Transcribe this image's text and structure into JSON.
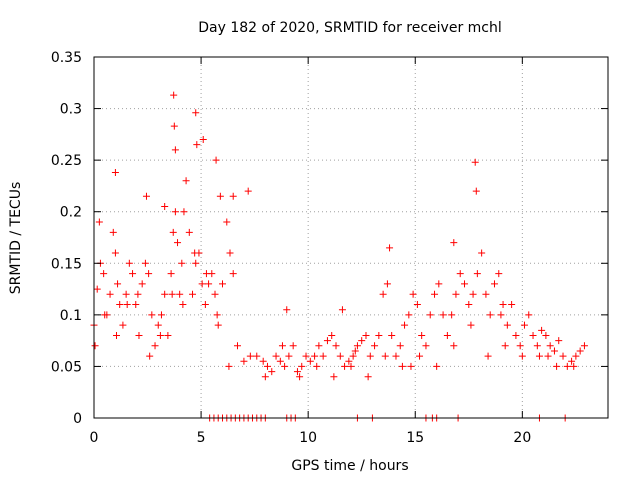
{
  "chart_data": {
    "type": "scatter",
    "title": "Day 182 of 2020, SRMTID for receiver mchl",
    "xlabel": "GPS time / hours",
    "ylabel": "SRMTID / TECUs",
    "xlim": [
      0,
      24
    ],
    "ylim": [
      0,
      0.35
    ],
    "xticks": [
      0,
      5,
      10,
      15,
      20
    ],
    "xtick_labels": [
      "0",
      "5",
      "10",
      "15",
      "20"
    ],
    "yticks": [
      0,
      0.05,
      0.1,
      0.15,
      0.2,
      0.25,
      0.3,
      0.35
    ],
    "ytick_labels": [
      "0",
      "0.05",
      "0.1",
      "0.15",
      "0.2",
      "0.25",
      "0.3",
      "0.35"
    ],
    "grid": true,
    "marker": "+",
    "color": "#ff0000",
    "series": [
      {
        "name": "SRMTID",
        "x": [
          0.0,
          0.15,
          0.3,
          0.45,
          0.6,
          0.75,
          0.9,
          1.0,
          1.1,
          1.2,
          1.35,
          1.5,
          1.65,
          1.8,
          1.95,
          2.1,
          2.25,
          2.4,
          2.55,
          2.7,
          2.85,
          3.0,
          3.15,
          3.3,
          3.45,
          3.6,
          3.7,
          3.8,
          3.9,
          4.0,
          4.1,
          4.2,
          4.3,
          4.45,
          4.6,
          4.75,
          4.9,
          5.05,
          5.2,
          5.35,
          5.5,
          5.65,
          5.8,
          6.0,
          6.2,
          6.35,
          6.5,
          6.7,
          7.0,
          7.3,
          7.6,
          7.9,
          8.1,
          8.3,
          8.5,
          8.7,
          8.9,
          9.1,
          9.3,
          9.5,
          9.7,
          9.9,
          10.1,
          10.3,
          10.5,
          10.7,
          10.9,
          11.1,
          11.3,
          11.5,
          11.7,
          11.9,
          12.1,
          12.3,
          12.5,
          12.7,
          12.9,
          13.1,
          13.3,
          13.5,
          13.7,
          13.9,
          14.1,
          14.3,
          14.5,
          14.7,
          14.9,
          15.1,
          15.3,
          15.5,
          15.7,
          15.9,
          16.1,
          16.3,
          16.5,
          16.7,
          16.9,
          17.1,
          17.3,
          17.5,
          17.7,
          17.9,
          18.1,
          18.3,
          18.5,
          18.7,
          18.9,
          19.1,
          19.3,
          19.5,
          19.7,
          19.9,
          20.1,
          20.3,
          20.5,
          20.7,
          20.9,
          21.1,
          21.3,
          21.5,
          21.7,
          21.9,
          22.1,
          22.3,
          22.5,
          22.7,
          22.9,
          0.05,
          0.5,
          1.05,
          1.55,
          2.05,
          2.6,
          3.1,
          3.65,
          4.15,
          4.7,
          5.25,
          5.75,
          6.3,
          8.0,
          8.8,
          9.6,
          10.4,
          11.2,
          12.0,
          12.8,
          13.6,
          14.4,
          15.2,
          16.0,
          16.8,
          17.6,
          18.4,
          19.2,
          20.0,
          20.8,
          21.6,
          22.4,
          3.72,
          3.75,
          3.8,
          4.75,
          4.8,
          5.1,
          5.7,
          5.9,
          6.5,
          7.2,
          13.8,
          16.8,
          17.8,
          17.85,
          1.0,
          2.45,
          3.3,
          0.25,
          9.0,
          11.6,
          12.2,
          14.8,
          19.0,
          21.2,
          5.4,
          5.6,
          5.8,
          6.0,
          6.2,
          6.4,
          6.6,
          6.8,
          7.0,
          7.2,
          7.4,
          7.6,
          7.8,
          8.0,
          9.0,
          9.2,
          9.4,
          12.3,
          13.0,
          15.5,
          15.8,
          16.0,
          17.0,
          20.8,
          22.0
        ],
        "y": [
          0.09,
          0.125,
          0.15,
          0.14,
          0.1,
          0.12,
          0.18,
          0.16,
          0.13,
          0.11,
          0.09,
          0.12,
          0.15,
          0.14,
          0.11,
          0.08,
          0.13,
          0.15,
          0.14,
          0.1,
          0.07,
          0.09,
          0.1,
          0.12,
          0.08,
          0.14,
          0.18,
          0.2,
          0.17,
          0.12,
          0.15,
          0.2,
          0.23,
          0.18,
          0.12,
          0.15,
          0.16,
          0.13,
          0.11,
          0.13,
          0.14,
          0.12,
          0.09,
          0.13,
          0.19,
          0.16,
          0.14,
          0.07,
          0.055,
          0.06,
          0.06,
          0.055,
          0.05,
          0.045,
          0.06,
          0.055,
          0.05,
          0.06,
          0.07,
          0.045,
          0.05,
          0.06,
          0.055,
          0.06,
          0.07,
          0.06,
          0.075,
          0.08,
          0.07,
          0.06,
          0.05,
          0.055,
          0.06,
          0.07,
          0.075,
          0.08,
          0.06,
          0.07,
          0.08,
          0.12,
          0.13,
          0.08,
          0.06,
          0.07,
          0.09,
          0.1,
          0.12,
          0.11,
          0.08,
          0.07,
          0.1,
          0.12,
          0.13,
          0.1,
          0.08,
          0.1,
          0.12,
          0.14,
          0.13,
          0.11,
          0.12,
          0.14,
          0.16,
          0.12,
          0.1,
          0.13,
          0.14,
          0.11,
          0.09,
          0.11,
          0.08,
          0.07,
          0.09,
          0.1,
          0.08,
          0.07,
          0.085,
          0.08,
          0.07,
          0.065,
          0.075,
          0.06,
          0.05,
          0.055,
          0.06,
          0.065,
          0.07,
          0.07,
          0.1,
          0.08,
          0.11,
          0.12,
          0.06,
          0.08,
          0.12,
          0.11,
          0.16,
          0.14,
          0.1,
          0.05,
          0.04,
          0.07,
          0.04,
          0.05,
          0.04,
          0.05,
          0.04,
          0.06,
          0.05,
          0.06,
          0.05,
          0.07,
          0.09,
          0.06,
          0.07,
          0.06,
          0.06,
          0.05,
          0.05,
          0.313,
          0.283,
          0.26,
          0.296,
          0.265,
          0.27,
          0.25,
          0.215,
          0.215,
          0.22,
          0.165,
          0.17,
          0.248,
          0.22,
          0.238,
          0.215,
          0.205,
          0.19,
          0.105,
          0.105,
          0.065,
          0.05,
          0.1,
          0.06,
          0.0,
          0.0,
          0.0,
          0.0,
          0.0,
          0.0,
          0.0,
          0.0,
          0.0,
          0.0,
          0.0,
          0.0,
          0.0,
          0.0,
          0.0,
          0.0,
          0.0,
          0.0,
          0.0,
          0.0,
          0.0,
          0.0,
          0.0,
          0.0,
          0.0
        ]
      }
    ]
  }
}
